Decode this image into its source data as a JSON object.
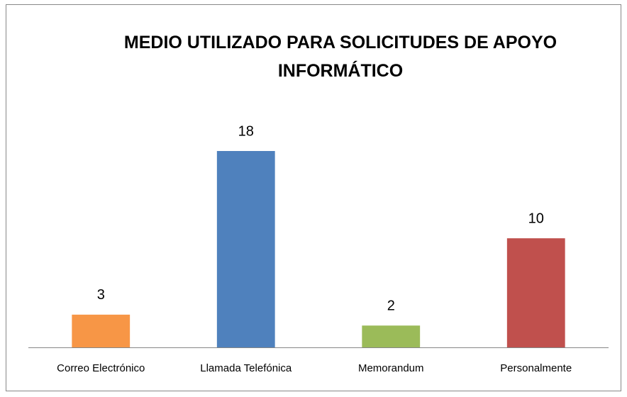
{
  "chart_data": {
    "type": "bar",
    "title": "MEDIO UTILIZADO PARA SOLICITUDES DE APOYO INFORMÁTICO",
    "categories": [
      "Correo Electrónico",
      "Llamada Telefónica",
      "Memorandum",
      "Personalmente"
    ],
    "values": [
      3,
      18,
      2,
      10
    ],
    "colors": [
      "#f79646",
      "#4f81bd",
      "#9bbb59",
      "#c0504d"
    ],
    "ylim": [
      0,
      18
    ]
  }
}
